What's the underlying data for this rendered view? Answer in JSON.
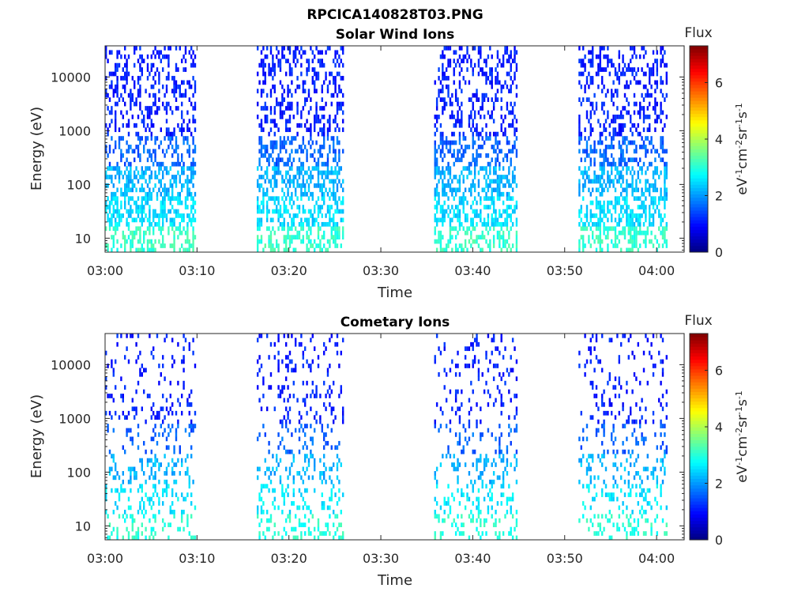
{
  "figure_title": "RPCICA140828T03.PNG",
  "chart_data": [
    {
      "type": "heatmap",
      "title": "Solar Wind Ions",
      "xlabel": "Time",
      "ylabel": "Energy (eV)",
      "y_scale": "log",
      "ylim": [
        5.5,
        38000
      ],
      "x_ticks": [
        "03:00",
        "03:10",
        "03:20",
        "03:30",
        "03:40",
        "03:50",
        "04:00"
      ],
      "x_range_minutes": [
        0,
        63
      ],
      "y_ticks": [
        "10",
        "100",
        "1000",
        "10000"
      ],
      "y_tick_values": [
        10,
        100,
        1000,
        10000
      ],
      "colorbar": {
        "label": "Flux",
        "unit": "eV-1cm-2sr-1s-1",
        "ticks": [
          "0",
          "2",
          "4",
          "6"
        ],
        "range": [
          0,
          7.3
        ],
        "colormap": "jet"
      },
      "data_intervals_minutes": [
        [
          0,
          9.9
        ],
        [
          16.5,
          25.8
        ],
        [
          35.8,
          44.8
        ],
        [
          51.5,
          61.0
        ]
      ],
      "observed_levels": [
        {
          "energy_range_eV": [
            5.5,
            17
          ],
          "flux": 3.1
        },
        {
          "energy_range_eV": [
            17,
            60
          ],
          "flux": 2.5
        },
        {
          "energy_range_eV": [
            60,
            200
          ],
          "flux": 2.2
        },
        {
          "energy_range_eV": [
            200,
            800
          ],
          "flux": 1.6
        },
        {
          "energy_range_eV": [
            800,
            38000
          ],
          "flux": 1.1
        }
      ]
    },
    {
      "type": "heatmap",
      "title": "Cometary Ions",
      "xlabel": "Time",
      "ylabel": "Energy (eV)",
      "y_scale": "log",
      "ylim": [
        5.5,
        38000
      ],
      "x_ticks": [
        "03:00",
        "03:10",
        "03:20",
        "03:30",
        "03:40",
        "03:50",
        "04:00"
      ],
      "x_range_minutes": [
        0,
        63
      ],
      "y_ticks": [
        "10",
        "100",
        "1000",
        "10000"
      ],
      "y_tick_values": [
        10,
        100,
        1000,
        10000
      ],
      "colorbar": {
        "label": "Flux",
        "unit": "eV-1cm-2sr-1s-1",
        "ticks": [
          "0",
          "2",
          "4",
          "6"
        ],
        "range": [
          0,
          7.3
        ],
        "colormap": "jet"
      },
      "data_intervals_minutes": [
        [
          0,
          9.9
        ],
        [
          16.5,
          25.8
        ],
        [
          35.8,
          44.8
        ],
        [
          51.5,
          61.0
        ]
      ],
      "observed_levels": [
        {
          "energy_range_eV": [
            5.5,
            17
          ],
          "flux": 3.0
        },
        {
          "energy_range_eV": [
            17,
            60
          ],
          "flux": 2.6
        },
        {
          "energy_range_eV": [
            60,
            200
          ],
          "flux": 2.2
        },
        {
          "energy_range_eV": [
            200,
            800
          ],
          "flux": 1.6
        },
        {
          "energy_range_eV": [
            800,
            38000
          ],
          "flux": 1.1
        }
      ]
    }
  ]
}
